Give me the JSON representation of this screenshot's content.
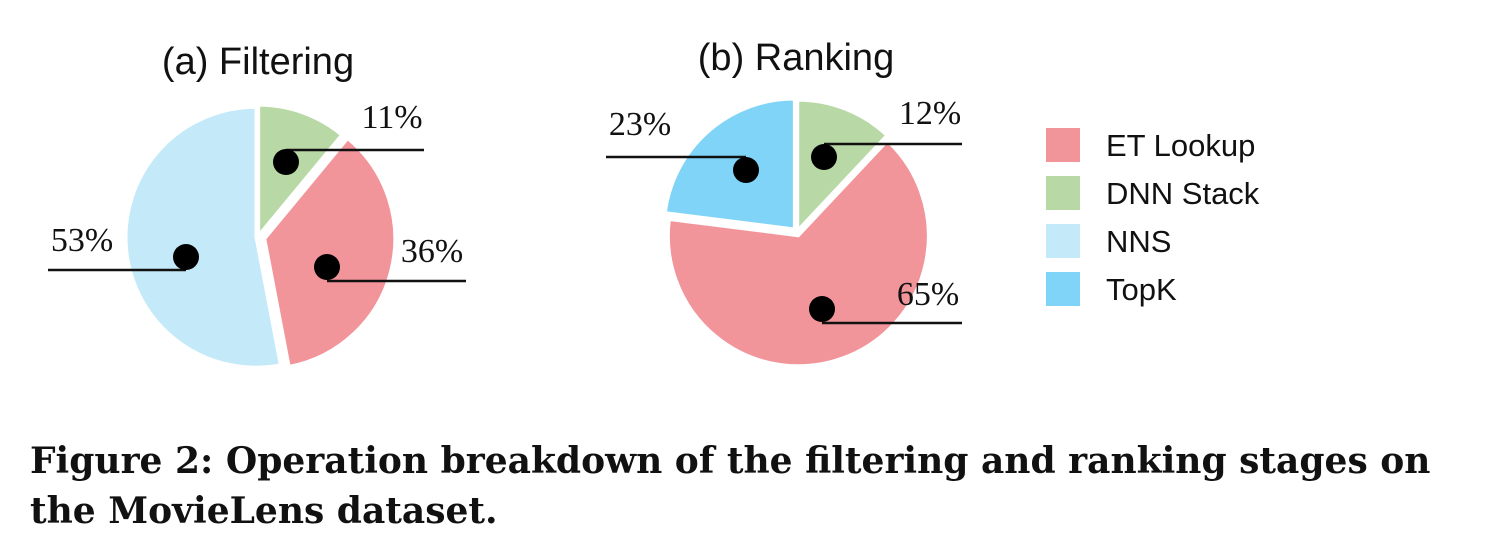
{
  "chart_data": [
    {
      "type": "pie",
      "title": "(a) Filtering",
      "slices": [
        {
          "name": "DNN Stack",
          "value": 11,
          "label": "11%"
        },
        {
          "name": "ET Lookup",
          "value": 36,
          "label": "36%"
        },
        {
          "name": "NNS",
          "value": 53,
          "label": "53%"
        }
      ]
    },
    {
      "type": "pie",
      "title": "(b) Ranking",
      "slices": [
        {
          "name": "DNN Stack",
          "value": 12,
          "label": "12%"
        },
        {
          "name": "ET Lookup",
          "value": 65,
          "label": "65%"
        },
        {
          "name": "TopK",
          "value": 23,
          "label": "23%"
        }
      ]
    }
  ],
  "legend": [
    {
      "label": "ET Lookup",
      "color": "#f2959b"
    },
    {
      "label": "DNN Stack",
      "color": "#b8d8a5"
    },
    {
      "label": "NNS",
      "color": "#c4eaf9"
    },
    {
      "label": "TopK",
      "color": "#7fd4f7"
    }
  ],
  "colors": {
    "ET Lookup": "#f2959b",
    "DNN Stack": "#b8d8a5",
    "NNS": "#c4eaf9",
    "TopK": "#7fd4f7"
  },
  "caption": "Figure 2: Operation breakdown of the filtering and ranking stages on the MovieLens dataset."
}
